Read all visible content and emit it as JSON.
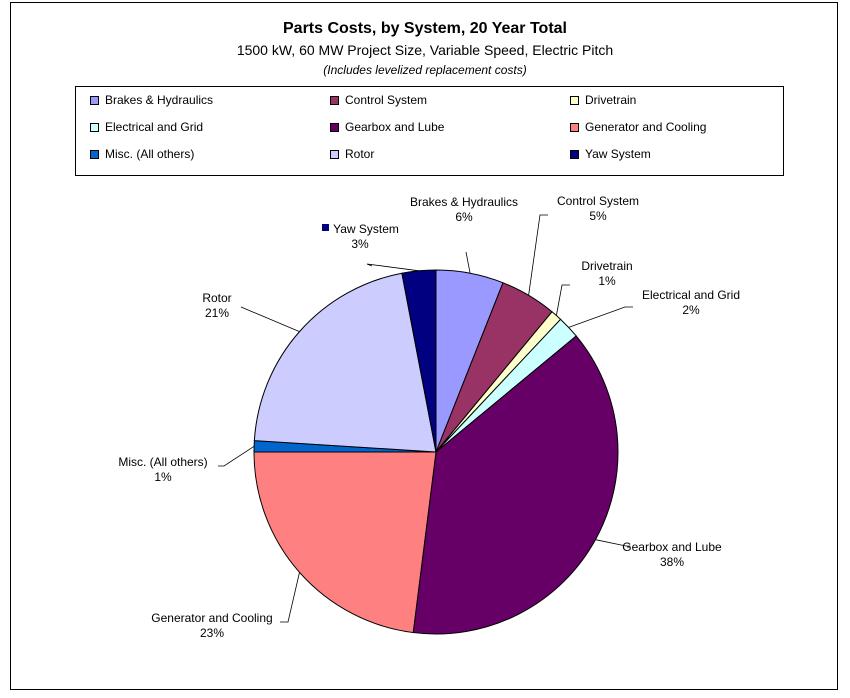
{
  "chart_data": {
    "type": "pie",
    "title": "Parts Costs, by System, 20 Year Total",
    "subtitle": "1500 kW, 60 MW Project Size, Variable Speed, Electric Pitch",
    "note": "(Includes levelized replacement costs)",
    "legend_position": "top",
    "slices": [
      {
        "name": "Brakes & Hydraulics",
        "value": 6,
        "label": "6%",
        "color": "#9999ff"
      },
      {
        "name": "Control System",
        "value": 5,
        "label": "5%",
        "color": "#993366"
      },
      {
        "name": "Drivetrain",
        "value": 1,
        "label": "1%",
        "color": "#ffffcc"
      },
      {
        "name": "Electrical and Grid",
        "value": 2,
        "label": "2%",
        "color": "#ccffff"
      },
      {
        "name": "Gearbox and Lube",
        "value": 38,
        "label": "38%",
        "color": "#660066"
      },
      {
        "name": "Generator and Cooling",
        "value": 23,
        "label": "23%",
        "color": "#ff8080"
      },
      {
        "name": "Misc. (All others)",
        "value": 1,
        "label": "1%",
        "color": "#0066cc"
      },
      {
        "name": "Rotor",
        "value": 21,
        "label": "21%",
        "color": "#ccccff"
      },
      {
        "name": "Yaw System",
        "value": 3,
        "label": "3%",
        "color": "#000080"
      }
    ]
  }
}
